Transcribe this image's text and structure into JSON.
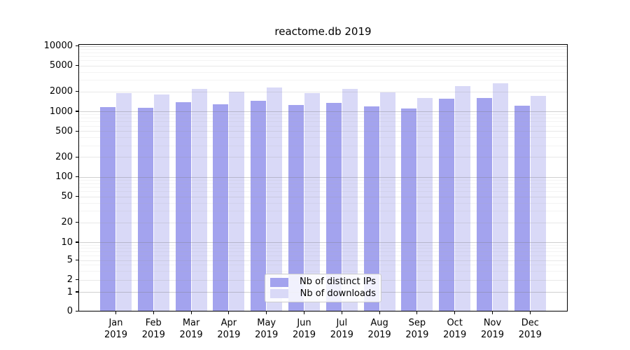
{
  "chart_data": {
    "type": "bar",
    "title": "reactome.db 2019",
    "categories": [
      "Jan",
      "Feb",
      "Mar",
      "Apr",
      "May",
      "Jun",
      "Jul",
      "Aug",
      "Sep",
      "Oct",
      "Nov",
      "Dec"
    ],
    "x_tick_second_line": "2019",
    "series": [
      {
        "name": "Nb of distinct IPs",
        "color": "#a3a3ee",
        "values": [
          1160,
          1130,
          1380,
          1280,
          1460,
          1250,
          1340,
          1200,
          1100,
          1550,
          1600,
          1220
        ]
      },
      {
        "name": "Nb of downloads",
        "color": "#d9d9f7",
        "values": [
          1900,
          1800,
          2200,
          2000,
          2300,
          1900,
          2200,
          1950,
          1600,
          2400,
          2650,
          1700
        ]
      }
    ],
    "y_axis": {
      "scale": "symlog",
      "ticks": [
        0,
        1,
        2,
        5,
        10,
        20,
        50,
        100,
        200,
        500,
        1000,
        2000,
        5000,
        10000
      ],
      "range": [
        0,
        10000
      ]
    },
    "legend": {
      "position": "lower center"
    },
    "grid": "both",
    "background": "#ffffff"
  }
}
